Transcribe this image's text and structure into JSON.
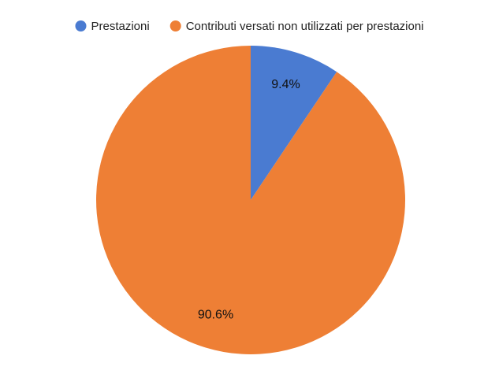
{
  "chart_data": {
    "type": "pie",
    "categories": [
      "Prestazioni",
      "Contributi versati non utilizzati per prestazioni"
    ],
    "values": [
      9.4,
      90.6
    ],
    "value_labels": [
      "9.4%",
      "90.6%"
    ],
    "colors": [
      "#4a7bd1",
      "#ee7f35"
    ],
    "legend": "top"
  }
}
